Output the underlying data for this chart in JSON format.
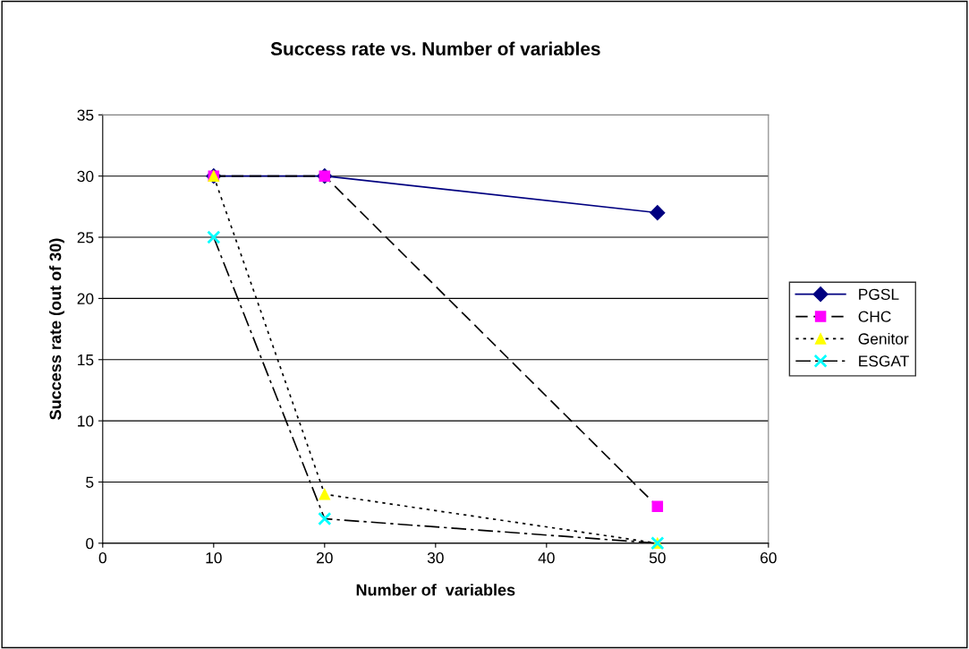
{
  "chart_data": {
    "type": "line",
    "title": "Success rate vs. Number of variables",
    "xlabel": "Number of  variables",
    "ylabel": "Success rate (out of 30)",
    "x": [
      10,
      20,
      50
    ],
    "series": [
      {
        "name": "PGSL",
        "color": "#000080",
        "marker": "diamond",
        "line_style": "solid",
        "values": [
          30,
          30,
          27
        ]
      },
      {
        "name": "CHC",
        "color": "#ff00ff",
        "marker": "square",
        "line_style": "dashed",
        "values": [
          30,
          30,
          3
        ]
      },
      {
        "name": "Genitor",
        "color": "#ffff00",
        "marker": "triangle",
        "line_style": "dotted",
        "values": [
          30,
          4,
          0
        ]
      },
      {
        "name": "ESGAT",
        "color": "#00ffff",
        "marker": "cross",
        "line_style": "dashdot",
        "values": [
          25,
          2,
          0
        ]
      }
    ],
    "xlim": [
      0,
      60
    ],
    "xticks": [
      0,
      10,
      20,
      30,
      40,
      50,
      60
    ],
    "ylim": [
      0,
      35
    ],
    "yticks": [
      0,
      5,
      10,
      15,
      20,
      25,
      30,
      35
    ],
    "grid": "y",
    "legend": "right"
  }
}
